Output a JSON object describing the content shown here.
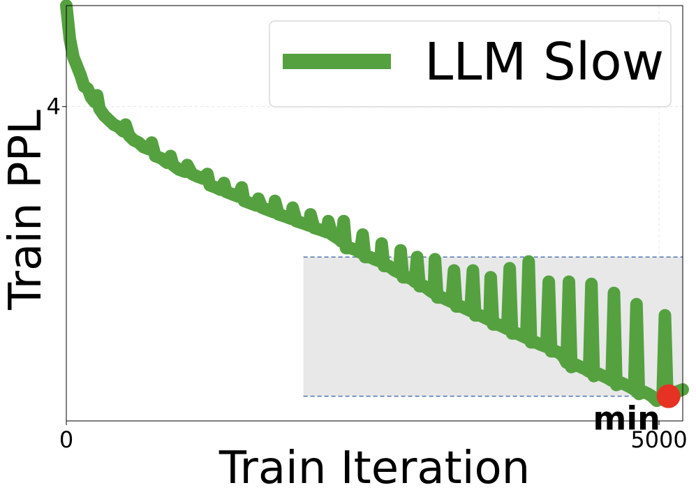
{
  "chart_data": {
    "type": "line",
    "xlabel": "Train Iteration",
    "ylabel": "Train PPL",
    "xlim": [
      0,
      5200
    ],
    "ylim": [
      2.6,
      4.45
    ],
    "x_ticks": [
      {
        "value": 0,
        "label": "0"
      },
      {
        "value": 5000,
        "label": "5000"
      }
    ],
    "y_ticks": [
      {
        "value": 4.0,
        "label": "4"
      }
    ],
    "grid": true,
    "legend_position": "top-right",
    "series": [
      {
        "name": "LLM Slow",
        "color": "#55a140",
        "points": [
          [
            0,
            4.45
          ],
          [
            30,
            4.3
          ],
          [
            60,
            4.22
          ],
          [
            90,
            4.18
          ],
          [
            120,
            4.14
          ],
          [
            150,
            4.09
          ],
          [
            180,
            4.08
          ],
          [
            210,
            4.04
          ],
          [
            240,
            4.02
          ],
          [
            260,
            4.05
          ],
          [
            280,
            3.99
          ],
          [
            320,
            3.96
          ],
          [
            360,
            3.94
          ],
          [
            400,
            3.92
          ],
          [
            440,
            3.91
          ],
          [
            480,
            3.89
          ],
          [
            500,
            3.92
          ],
          [
            530,
            3.87
          ],
          [
            570,
            3.85
          ],
          [
            610,
            3.84
          ],
          [
            650,
            3.82
          ],
          [
            700,
            3.81
          ],
          [
            720,
            3.84
          ],
          [
            750,
            3.78
          ],
          [
            800,
            3.77
          ],
          [
            850,
            3.75
          ],
          [
            880,
            3.78
          ],
          [
            900,
            3.74
          ],
          [
            950,
            3.72
          ],
          [
            1000,
            3.71
          ],
          [
            1020,
            3.74
          ],
          [
            1060,
            3.7
          ],
          [
            1100,
            3.69
          ],
          [
            1150,
            3.68
          ],
          [
            1190,
            3.7
          ],
          [
            1210,
            3.65
          ],
          [
            1260,
            3.64
          ],
          [
            1300,
            3.63
          ],
          [
            1330,
            3.66
          ],
          [
            1350,
            3.62
          ],
          [
            1400,
            3.61
          ],
          [
            1450,
            3.6
          ],
          [
            1480,
            3.64
          ],
          [
            1500,
            3.58
          ],
          [
            1550,
            3.57
          ],
          [
            1600,
            3.56
          ],
          [
            1620,
            3.59
          ],
          [
            1650,
            3.55
          ],
          [
            1700,
            3.54
          ],
          [
            1750,
            3.53
          ],
          [
            1760,
            3.58
          ],
          [
            1790,
            3.52
          ],
          [
            1850,
            3.51
          ],
          [
            1900,
            3.5
          ],
          [
            1910,
            3.55
          ],
          [
            1940,
            3.49
          ],
          [
            2000,
            3.48
          ],
          [
            2050,
            3.47
          ],
          [
            2060,
            3.52
          ],
          [
            2090,
            3.46
          ],
          [
            2150,
            3.45
          ],
          [
            2200,
            3.44
          ],
          [
            2210,
            3.49
          ],
          [
            2240,
            3.43
          ],
          [
            2300,
            3.41
          ],
          [
            2320,
            3.4
          ],
          [
            2340,
            3.49
          ],
          [
            2360,
            3.37
          ],
          [
            2400,
            3.37
          ],
          [
            2450,
            3.36
          ],
          [
            2480,
            3.35
          ],
          [
            2500,
            3.43
          ],
          [
            2520,
            3.33
          ],
          [
            2560,
            3.33
          ],
          [
            2600,
            3.32
          ],
          [
            2650,
            3.31
          ],
          [
            2660,
            3.39
          ],
          [
            2680,
            3.29
          ],
          [
            2720,
            3.29
          ],
          [
            2770,
            3.27
          ],
          [
            2810,
            3.26
          ],
          [
            2820,
            3.36
          ],
          [
            2840,
            3.24
          ],
          [
            2880,
            3.24
          ],
          [
            2920,
            3.23
          ],
          [
            2940,
            3.22
          ],
          [
            2960,
            3.33
          ],
          [
            2980,
            3.2
          ],
          [
            3020,
            3.2
          ],
          [
            3070,
            3.18
          ],
          [
            3100,
            3.17
          ],
          [
            3110,
            3.32
          ],
          [
            3130,
            3.15
          ],
          [
            3170,
            3.15
          ],
          [
            3210,
            3.14
          ],
          [
            3250,
            3.13
          ],
          [
            3270,
            3.27
          ],
          [
            3290,
            3.11
          ],
          [
            3330,
            3.11
          ],
          [
            3370,
            3.1
          ],
          [
            3410,
            3.09
          ],
          [
            3430,
            3.27
          ],
          [
            3450,
            3.07
          ],
          [
            3490,
            3.07
          ],
          [
            3530,
            3.06
          ],
          [
            3570,
            3.05
          ],
          [
            3580,
            3.24
          ],
          [
            3600,
            3.03
          ],
          [
            3640,
            3.03
          ],
          [
            3680,
            3.02
          ],
          [
            3720,
            3.01
          ],
          [
            3740,
            3.28
          ],
          [
            3760,
            2.99
          ],
          [
            3800,
            2.99
          ],
          [
            3840,
            2.98
          ],
          [
            3880,
            2.97
          ],
          [
            3900,
            3.31
          ],
          [
            3920,
            2.95
          ],
          [
            3960,
            2.95
          ],
          [
            4000,
            2.94
          ],
          [
            4050,
            2.93
          ],
          [
            4070,
            3.22
          ],
          [
            4090,
            2.91
          ],
          [
            4130,
            2.91
          ],
          [
            4170,
            2.9
          ],
          [
            4200,
            2.88
          ],
          [
            4220,
            2.86
          ],
          [
            4240,
            3.22
          ],
          [
            4260,
            2.84
          ],
          [
            4300,
            2.85
          ],
          [
            4340,
            2.84
          ],
          [
            4380,
            2.83
          ],
          [
            4410,
            2.82
          ],
          [
            4430,
            3.21
          ],
          [
            4450,
            2.8
          ],
          [
            4490,
            2.81
          ],
          [
            4530,
            2.8
          ],
          [
            4570,
            2.79
          ],
          [
            4600,
            2.78
          ],
          [
            4620,
            3.17
          ],
          [
            4640,
            2.76
          ],
          [
            4680,
            2.77
          ],
          [
            4720,
            2.76
          ],
          [
            4760,
            2.75
          ],
          [
            4790,
            2.74
          ],
          [
            4810,
            3.12
          ],
          [
            4830,
            2.72
          ],
          [
            4870,
            2.73
          ],
          [
            4910,
            2.72
          ],
          [
            4940,
            2.71
          ],
          [
            4980,
            2.69
          ],
          [
            5030,
            2.7
          ],
          [
            5050,
            3.07
          ],
          [
            5070,
            2.71
          ],
          [
            5110,
            2.7
          ],
          [
            5150,
            2.73
          ],
          [
            5200,
            2.74
          ]
        ]
      }
    ],
    "highlight_box": {
      "x0": 2000,
      "x1": 5200,
      "y0": 2.71,
      "y1": 3.33
    },
    "marker": {
      "x": 5080,
      "y": 2.71,
      "label": "min",
      "color": "#e63223"
    }
  }
}
